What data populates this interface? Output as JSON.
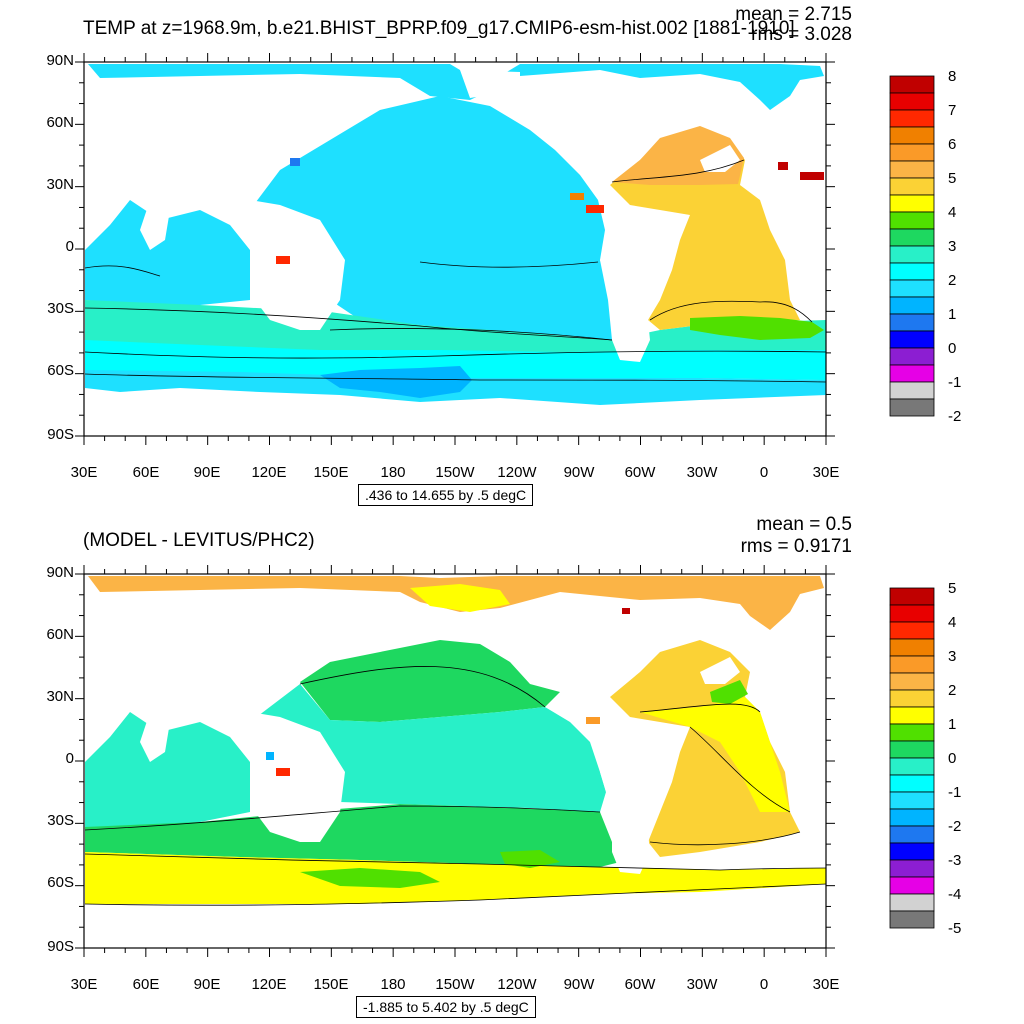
{
  "top": {
    "title": "TEMP at z=1968.9m, b.e21.BHIST_BPRP.f09_g17.CMIP6-esm-hist.002 [1881-1910]",
    "mean": "mean = 2.715",
    "rms": "rms = 3.028",
    "contour_info": ".436 to 14.655 by .5 degC",
    "colorbar": {
      "labels": [
        "8",
        "7",
        "6",
        "5",
        "4",
        "3",
        "2",
        "1",
        "0",
        "-1",
        "-2"
      ],
      "colors": [
        "#c00000",
        "#e80000",
        "#ff2800",
        "#f08000",
        "#fa9a28",
        "#fbb446",
        "#fbd235",
        "#ffff00",
        "#50e000",
        "#1ed860",
        "#28f0c8",
        "#00ffff",
        "#1ee0ff",
        "#00b4ff",
        "#1e78f0",
        "#0000ff",
        "#8c1ed2",
        "#e600e6",
        "#d2d2d2",
        "#787878"
      ]
    }
  },
  "bottom": {
    "title": "(MODEL - LEVITUS/PHC2)",
    "mean": "mean = 0.5",
    "rms": "rms = 0.9171",
    "contour_info": "-1.885 to 5.402 by .5 degC",
    "colorbar": {
      "labels": [
        "5",
        "4",
        "3",
        "2",
        "1",
        "0",
        "-1",
        "-2",
        "-3",
        "-4",
        "-5"
      ],
      "colors": [
        "#c00000",
        "#e80000",
        "#ff2800",
        "#f08000",
        "#fa9a28",
        "#fbb446",
        "#fbd235",
        "#ffff00",
        "#50e000",
        "#1ed860",
        "#28f0c8",
        "#00ffff",
        "#1ee0ff",
        "#00b4ff",
        "#1e78f0",
        "#0000ff",
        "#8c1ed2",
        "#e600e6",
        "#d2d2d2",
        "#787878"
      ]
    }
  },
  "axes": {
    "lat_labels": [
      "90N",
      "60N",
      "30N",
      "0",
      "30S",
      "60S",
      "90S"
    ],
    "lon_labels": [
      "30E",
      "60E",
      "90E",
      "120E",
      "150E",
      "180",
      "150W",
      "120W",
      "90W",
      "60W",
      "30W",
      "0",
      "30E"
    ]
  },
  "field_colors": {
    "top_pacific": "#1ee0ff",
    "top_southern": "#28f0c8",
    "top_south_band": "#00ffff",
    "top_antarctic": "#1ee0ff",
    "top_antarctic_deep": "#00b4ff",
    "top_atlantic": "#fbd235",
    "top_north_atlantic": "#fbb446",
    "top_arctic": "#1ee0ff",
    "top_green_band": "#50e000",
    "bottom_pacific": "#28f0c8",
    "bottom_north_pacific": "#1ed860",
    "bottom_southern": "#1ed860",
    "bottom_south_band": "#ffff00",
    "bottom_atlantic": "#fbd235",
    "bottom_north_atlantic": "#ffff00",
    "bottom_arctic": "#fbb446",
    "bottom_green_atl": "#50e000"
  }
}
